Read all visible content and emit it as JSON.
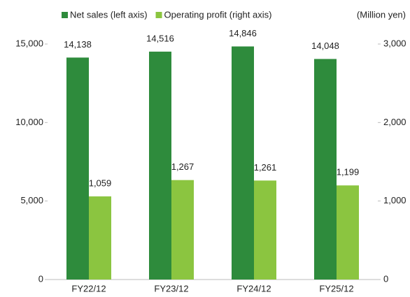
{
  "chart_data": {
    "type": "bar",
    "unit_label": "(Million yen)",
    "categories": [
      "FY22/12",
      "FY23/12",
      "FY24/12",
      "FY25/12"
    ],
    "series": [
      {
        "name": "Net sales (left axis)",
        "color": "#2e8b3c",
        "values": [
          14138,
          14516,
          14846,
          14048
        ],
        "value_labels": [
          "14,138",
          "14,516",
          "14,846",
          "14,048"
        ]
      },
      {
        "name": "Operating profit (right axis)",
        "color": "#8bc540",
        "axis": "y2",
        "values": [
          1059,
          1267,
          1261,
          1199
        ],
        "value_labels": [
          "1,059",
          "1,267",
          "1,261",
          "1,199"
        ]
      }
    ],
    "ylim": [
      0,
      15000
    ],
    "yticks": [
      0,
      {
        "value": 5000,
        "label": "5,000"
      },
      {
        "value": 10000,
        "label": "10,000"
      },
      {
        "value": 15000,
        "label": "15,000"
      }
    ],
    "y2lim": [
      0,
      3000
    ],
    "y2ticks": [
      0,
      {
        "value": 1000,
        "label": "1,000"
      },
      {
        "value": 2000,
        "label": "2,000"
      },
      {
        "value": 3000,
        "label": "3,000"
      }
    ],
    "legend": "top"
  }
}
